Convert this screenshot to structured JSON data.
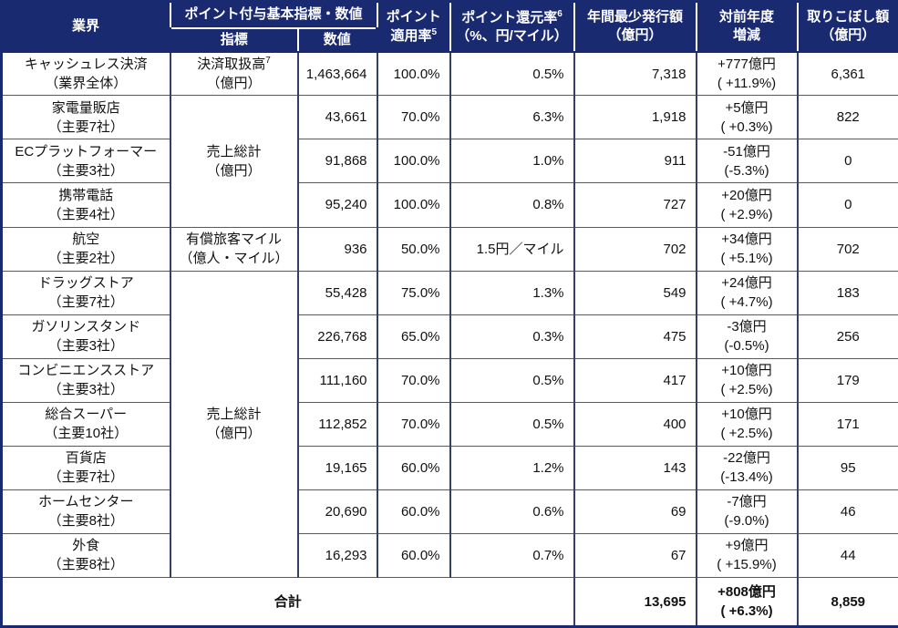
{
  "colors": {
    "header_bg": "#1a2a70",
    "header_text": "#ffffff",
    "body_text": "#111111",
    "grid_vertical": "#333f63",
    "grid_horizontal": "#595959",
    "outer_border": "#1a2a70"
  },
  "table": {
    "header": {
      "industry": "業界",
      "basis_group": "ポイント付与基本指標・数値",
      "indicator": "指標",
      "value": "数値",
      "apply_rate_line1": "ポイント",
      "apply_rate_line2": "適用率",
      "apply_rate_sup": "5",
      "redeem_rate_line1": "ポイント還元率",
      "redeem_rate_sup": "6",
      "redeem_rate_line2": "（%、円/マイル）",
      "annual_min_line1": "年間最少発行額",
      "annual_min_line2": "（億円）",
      "yoy_line1": "対前年度",
      "yoy_line2": "増減",
      "missed_line1": "取りこぼし額",
      "missed_line2": "（億円）"
    },
    "rows": [
      {
        "industry_line1": "キャッシュレス決済",
        "industry_line2": "（業界全体）",
        "indicator": {
          "line1": "決済取扱高",
          "sup": "7",
          "line2": "（億円）",
          "rowspan": 1
        },
        "value": "1,463,664",
        "apply_rate": "100.0%",
        "redeem_rate": "0.5%",
        "annual_min": "7,318",
        "yoy_line1": "+777億円",
        "yoy_line2": "( +11.9%)",
        "missed": "6,361"
      },
      {
        "industry_line1": "家電量販店",
        "industry_line2": "（主要7社）",
        "indicator": {
          "line1": "売上総計",
          "sup": null,
          "line2": "（億円）",
          "rowspan": 3
        },
        "value": "43,661",
        "apply_rate": "70.0%",
        "redeem_rate": "6.3%",
        "annual_min": "1,918",
        "yoy_line1": "+5億円",
        "yoy_line2": "( +0.3%)",
        "missed": "822"
      },
      {
        "industry_line1": "ECプラットフォーマー",
        "industry_line2": "（主要3社）",
        "indicator": null,
        "value": "91,868",
        "apply_rate": "100.0%",
        "redeem_rate": "1.0%",
        "annual_min": "911",
        "yoy_line1": "-51億円",
        "yoy_line2": "(-5.3%)",
        "missed": "0"
      },
      {
        "industry_line1": "携帯電話",
        "industry_line2": "（主要4社）",
        "indicator": null,
        "value": "95,240",
        "apply_rate": "100.0%",
        "redeem_rate": "0.8%",
        "annual_min": "727",
        "yoy_line1": "+20億円",
        "yoy_line2": "( +2.9%)",
        "missed": "0"
      },
      {
        "industry_line1": "航空",
        "industry_line2": "（主要2社）",
        "indicator": {
          "line1": "有償旅客マイル",
          "sup": null,
          "line2": "（億人・マイル）",
          "rowspan": 1
        },
        "value": "936",
        "apply_rate": "50.0%",
        "redeem_rate": "1.5円／マイル",
        "annual_min": "702",
        "yoy_line1": "+34億円",
        "yoy_line2": "( +5.1%)",
        "missed": "702"
      },
      {
        "industry_line1": "ドラッグストア",
        "industry_line2": "（主要7社）",
        "indicator": {
          "line1": "売上総計",
          "sup": null,
          "line2": "（億円）",
          "rowspan": 7
        },
        "value": "55,428",
        "apply_rate": "75.0%",
        "redeem_rate": "1.3%",
        "annual_min": "549",
        "yoy_line1": "+24億円",
        "yoy_line2": "( +4.7%)",
        "missed": "183"
      },
      {
        "industry_line1": "ガソリンスタンド",
        "industry_line2": "（主要3社）",
        "indicator": null,
        "value": "226,768",
        "apply_rate": "65.0%",
        "redeem_rate": "0.3%",
        "annual_min": "475",
        "yoy_line1": "-3億円",
        "yoy_line2": "(-0.5%)",
        "missed": "256"
      },
      {
        "industry_line1": "コンビニエンスストア",
        "industry_line2": "（主要3社）",
        "indicator": null,
        "value": "111,160",
        "apply_rate": "70.0%",
        "redeem_rate": "0.5%",
        "annual_min": "417",
        "yoy_line1": "+10億円",
        "yoy_line2": "( +2.5%)",
        "missed": "179"
      },
      {
        "industry_line1": "総合スーパー",
        "industry_line2": "（主要10社）",
        "indicator": null,
        "value": "112,852",
        "apply_rate": "70.0%",
        "redeem_rate": "0.5%",
        "annual_min": "400",
        "yoy_line1": "+10億円",
        "yoy_line2": "( +2.5%)",
        "missed": "171"
      },
      {
        "industry_line1": "百貨店",
        "industry_line2": "（主要7社）",
        "indicator": null,
        "value": "19,165",
        "apply_rate": "60.0%",
        "redeem_rate": "1.2%",
        "annual_min": "143",
        "yoy_line1": "-22億円",
        "yoy_line2": "(-13.4%)",
        "missed": "95"
      },
      {
        "industry_line1": "ホームセンター",
        "industry_line2": "（主要8社）",
        "indicator": null,
        "value": "20,690",
        "apply_rate": "60.0%",
        "redeem_rate": "0.6%",
        "annual_min": "69",
        "yoy_line1": "-7億円",
        "yoy_line2": "(-9.0%)",
        "missed": "46"
      },
      {
        "industry_line1": "外食",
        "industry_line2": "（主要8社）",
        "indicator": null,
        "value": "16,293",
        "apply_rate": "60.0%",
        "redeem_rate": "0.7%",
        "annual_min": "67",
        "yoy_line1": "+9億円",
        "yoy_line2": "( +15.9%)",
        "missed": "44"
      }
    ],
    "total": {
      "label": "合計",
      "annual_min": "13,695",
      "yoy_line1": "+808億円",
      "yoy_line2": "( +6.3%)",
      "missed": "8,859"
    }
  }
}
